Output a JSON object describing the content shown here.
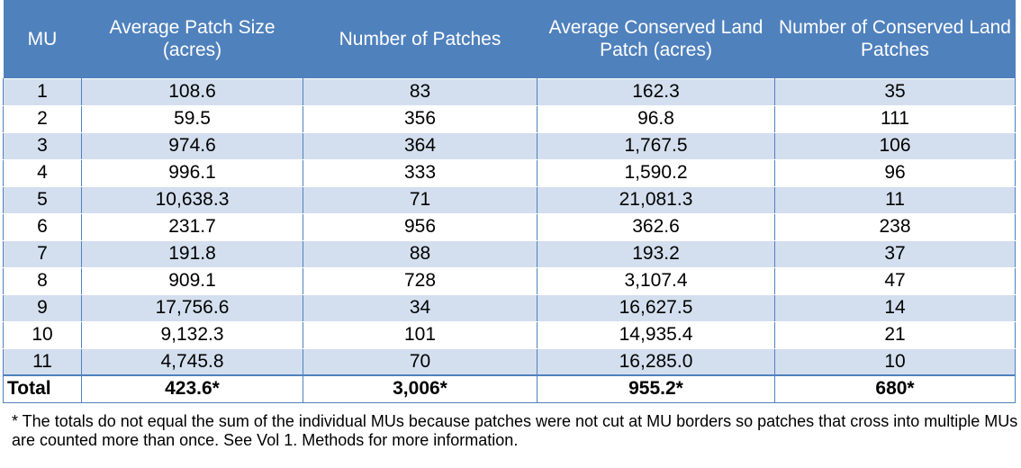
{
  "table": {
    "headers": [
      "MU",
      "Average Patch Size (acres)",
      "Number of Patches",
      "Average Conserved Land Patch (acres)",
      "Number of Conserved Land Patches"
    ],
    "rows": [
      [
        "1",
        "108.6",
        "83",
        "162.3",
        "35"
      ],
      [
        "2",
        "59.5",
        "356",
        "96.8",
        "111"
      ],
      [
        "3",
        "974.6",
        "364",
        "1,767.5",
        "106"
      ],
      [
        "4",
        "996.1",
        "333",
        "1,590.2",
        "96"
      ],
      [
        "5",
        "10,638.3",
        "71",
        "21,081.3",
        "11"
      ],
      [
        "6",
        "231.7",
        "956",
        "362.6",
        "238"
      ],
      [
        "7",
        "191.8",
        "88",
        "193.2",
        "37"
      ],
      [
        "8",
        "909.1",
        "728",
        "3,107.4",
        "47"
      ],
      [
        "9",
        "17,756.6",
        "34",
        "16,627.5",
        "14"
      ],
      [
        "10",
        "9,132.3",
        "101",
        "14,935.4",
        "21"
      ],
      [
        "11",
        "4,745.8",
        "70",
        "16,285.0",
        "10"
      ]
    ],
    "total": [
      "Total",
      "423.6*",
      "3,006*",
      "955.2*",
      "680*"
    ]
  },
  "footnote": "* The totals do not equal the sum of the individual MUs because patches were not cut at MU borders so patches that cross into multiple MUs are counted more than once. See Vol 1. Methods for more information.",
  "colors": {
    "header_bg": "#4f81bd",
    "header_text": "#ffffff",
    "band_bg": "#d3dfee"
  }
}
